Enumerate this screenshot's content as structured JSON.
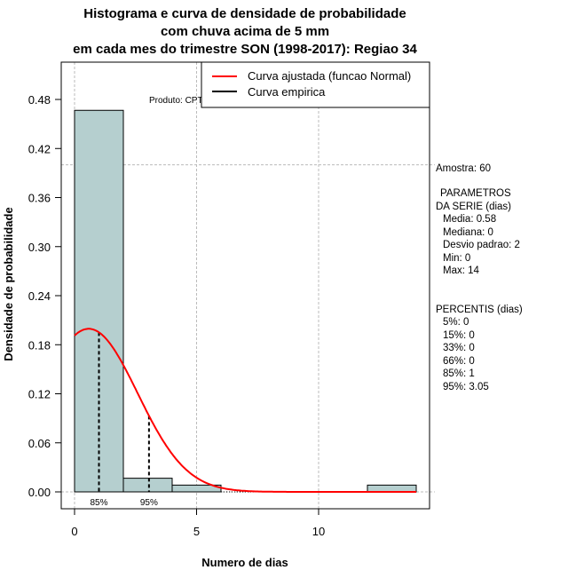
{
  "chart_data": {
    "type": "bar",
    "title_lines": [
      "Histograma e curva de densidade de probabilidade",
      "com chuva acima de 5 mm",
      "em cada mes do trimestre SON (1998-2017): Regiao 34"
    ],
    "xlabel": "Numero de dias",
    "ylabel": "Densidade de probabilidade",
    "xlim": [
      -0.5,
      14.5
    ],
    "ylim": [
      -0.02,
      0.5
    ],
    "x_ticks": [
      0,
      5,
      10
    ],
    "x_tick_labels": [
      "0",
      "5",
      "10"
    ],
    "y_ticks": [
      0.0,
      0.06,
      0.12,
      0.18,
      0.24,
      0.3,
      0.36,
      0.42,
      0.48
    ],
    "y_tick_labels": [
      "0.00",
      "0.06",
      "0.12",
      "0.18",
      "0.24",
      "0.30",
      "0.36",
      "0.42",
      "0.48"
    ],
    "grid": true,
    "bins": [
      {
        "from": 0,
        "to": 2,
        "density": 0.4667
      },
      {
        "from": 2,
        "to": 4,
        "density": 0.0167
      },
      {
        "from": 4,
        "to": 6,
        "density": 0.0083
      },
      {
        "from": 6,
        "to": 8,
        "density": 0
      },
      {
        "from": 8,
        "to": 10,
        "density": 0
      },
      {
        "from": 10,
        "to": 12,
        "density": 0
      },
      {
        "from": 12,
        "to": 14,
        "density": 0.0083
      }
    ],
    "bar_color": "#b5cfcf",
    "normal_curve": {
      "mean": 0.58,
      "sd": 2,
      "x_range": [
        0,
        14
      ],
      "color": "#ff0000"
    },
    "percentile_markers": [
      {
        "label": "85%",
        "x": 1
      },
      {
        "label": "95%",
        "x": 3.05
      }
    ],
    "legend": {
      "placement": "top-right",
      "entries": [
        {
          "label": "Curva ajustada (funcao Normal)",
          "color": "#ff0000"
        },
        {
          "label": "Curva empirica",
          "color": "#000000"
        }
      ]
    },
    "annotation": "Produto: CPTEC/INPE"
  },
  "side_panel": {
    "sample": "Amostra: 60",
    "params_title_1": "PARAMETROS",
    "params_title_2": "DA SERIE (dias)",
    "params": [
      "Media: 0.58",
      "Mediana: 0",
      "Desvio padrao: 2",
      "Min: 0",
      "Max: 14"
    ],
    "percentis_title": "PERCENTIS (dias)",
    "percentis": [
      "5%: 0",
      "15%: 0",
      "33%: 0",
      "66%: 0",
      "85%: 1",
      "95%: 3.05"
    ]
  }
}
